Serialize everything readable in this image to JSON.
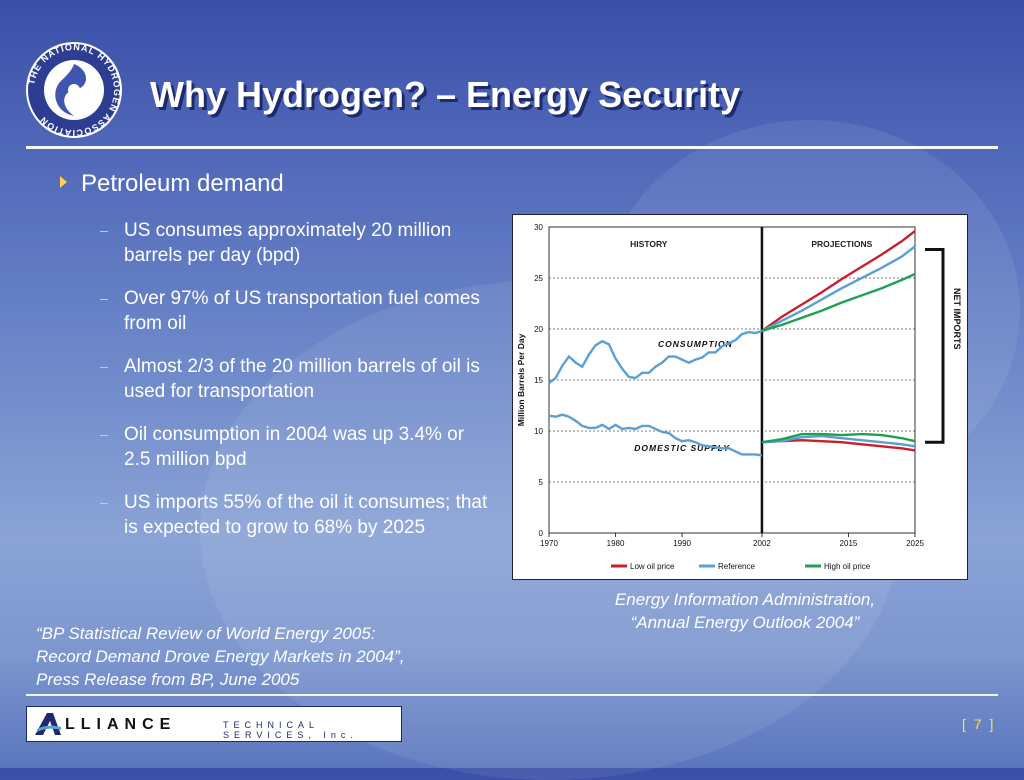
{
  "slide": {
    "title": "Why Hydrogen? – Energy Security",
    "page_number": "[ 7 ]",
    "logo_text": "THE NATIONAL HYDROGEN ASSOCIATION",
    "footer_logo": {
      "name": "LLIANCE",
      "sub": "TECHNICAL SERVICES, Inc."
    },
    "colors": {
      "title_shadow": "#1d2a6b",
      "bullet_accent": "#ffd24a",
      "page_number": "#ffe14a"
    }
  },
  "content": {
    "bullet": "Petroleum demand",
    "subbullets": [
      "US consumes approximately 20 million barrels per day (bpd)",
      "Over 97% of US transportation fuel comes from oil",
      "Almost 2/3 of the 20 million barrels of oil is used for transportation",
      "Oil consumption in 2004 was up 3.4% or 2.5 million bpd",
      "US imports 55% of the oil it consumes; that is expected to grow to 68% by 2025"
    ],
    "chart_caption_line1": "Energy Information Administration,",
    "chart_caption_line2": "“Annual Energy Outlook 2004”",
    "quote_line1": "“BP Statistical Review of World Energy 2005:",
    "quote_line2": "Record Demand Drove Energy Markets in 2004”,",
    "quote_line3": "Press Release from BP, June 2005"
  },
  "chart_data": {
    "type": "line",
    "ylabel": "Million Barrels Per Day",
    "ylim": [
      0,
      30
    ],
    "yticks": [
      0,
      5,
      10,
      15,
      20,
      25,
      30
    ],
    "xticks": [
      1970,
      1980,
      1990,
      2002,
      2015,
      2025
    ],
    "grid": "horizontal-dashed",
    "divider_year": 2002,
    "annotations": {
      "history": "HISTORY",
      "projections": "PROJECTIONS",
      "consumption": "CONSUMPTION",
      "domestic": "DOMESTIC SUPPLY",
      "net_imports": "NET IMPORTS"
    },
    "history_color": "#5aa0d6",
    "history": {
      "consumption": {
        "x": [
          1970,
          1971,
          1972,
          1973,
          1974,
          1975,
          1976,
          1977,
          1978,
          1979,
          1980,
          1981,
          1982,
          1983,
          1984,
          1985,
          1986,
          1987,
          1988,
          1989,
          1990,
          1991,
          1992,
          1993,
          1994,
          1995,
          1996,
          1997,
          1998,
          1999,
          2000,
          2001,
          2002
        ],
        "y": [
          14.7,
          15.2,
          16.4,
          17.3,
          16.7,
          16.3,
          17.5,
          18.4,
          18.8,
          18.5,
          17.1,
          16.1,
          15.3,
          15.2,
          15.7,
          15.7,
          16.3,
          16.7,
          17.3,
          17.3,
          17.0,
          16.7,
          17.0,
          17.2,
          17.7,
          17.7,
          18.3,
          18.6,
          18.9,
          19.5,
          19.7,
          19.6,
          19.8
        ]
      },
      "domestic": {
        "x": [
          1970,
          1971,
          1972,
          1973,
          1974,
          1975,
          1976,
          1977,
          1978,
          1979,
          1980,
          1981,
          1982,
          1983,
          1984,
          1985,
          1986,
          1987,
          1988,
          1989,
          1990,
          1991,
          1992,
          1993,
          1994,
          1995,
          1996,
          1997,
          1998,
          1999,
          2000,
          2001,
          2002
        ],
        "y": [
          11.5,
          11.4,
          11.6,
          11.4,
          11.0,
          10.5,
          10.3,
          10.3,
          10.6,
          10.2,
          10.6,
          10.2,
          10.3,
          10.2,
          10.5,
          10.5,
          10.2,
          9.9,
          9.8,
          9.3,
          9.0,
          9.1,
          8.9,
          8.6,
          8.5,
          8.4,
          8.3,
          8.3,
          8.0,
          7.7,
          7.7,
          7.7,
          7.6
        ]
      }
    },
    "series": [
      {
        "name": "Low oil price",
        "color": "#c8202a",
        "consumption": {
          "x": [
            2002,
            2005,
            2008,
            2011,
            2014,
            2017,
            2020,
            2023,
            2025
          ],
          "y": [
            19.8,
            21.2,
            22.4,
            23.6,
            24.9,
            26.1,
            27.3,
            28.6,
            29.6
          ]
        },
        "domestic": {
          "x": [
            2002,
            2005,
            2008,
            2011,
            2014,
            2017,
            2020,
            2023,
            2025
          ],
          "y": [
            8.9,
            9.0,
            9.1,
            9.0,
            8.9,
            8.7,
            8.5,
            8.3,
            8.1
          ]
        }
      },
      {
        "name": "Reference",
        "color": "#5aa0d6",
        "consumption": {
          "x": [
            2002,
            2005,
            2008,
            2011,
            2014,
            2017,
            2020,
            2023,
            2025
          ],
          "y": [
            19.8,
            20.8,
            21.8,
            22.9,
            24.0,
            25.0,
            26.0,
            27.1,
            28.1
          ]
        },
        "domestic": {
          "x": [
            2002,
            2005,
            2008,
            2011,
            2014,
            2017,
            2020,
            2023,
            2025
          ],
          "y": [
            8.9,
            9.0,
            9.4,
            9.5,
            9.3,
            9.1,
            8.9,
            8.7,
            8.5
          ]
        }
      },
      {
        "name": "High oil price",
        "color": "#1fa050",
        "consumption": {
          "x": [
            2002,
            2005,
            2008,
            2011,
            2014,
            2017,
            2020,
            2023,
            2025
          ],
          "y": [
            19.8,
            20.4,
            21.1,
            21.8,
            22.6,
            23.3,
            24.0,
            24.8,
            25.4
          ]
        },
        "domestic": {
          "x": [
            2002,
            2005,
            2008,
            2011,
            2014,
            2017,
            2020,
            2023,
            2025
          ],
          "y": [
            8.9,
            9.2,
            9.7,
            9.7,
            9.6,
            9.7,
            9.6,
            9.3,
            9.0
          ]
        }
      }
    ]
  }
}
